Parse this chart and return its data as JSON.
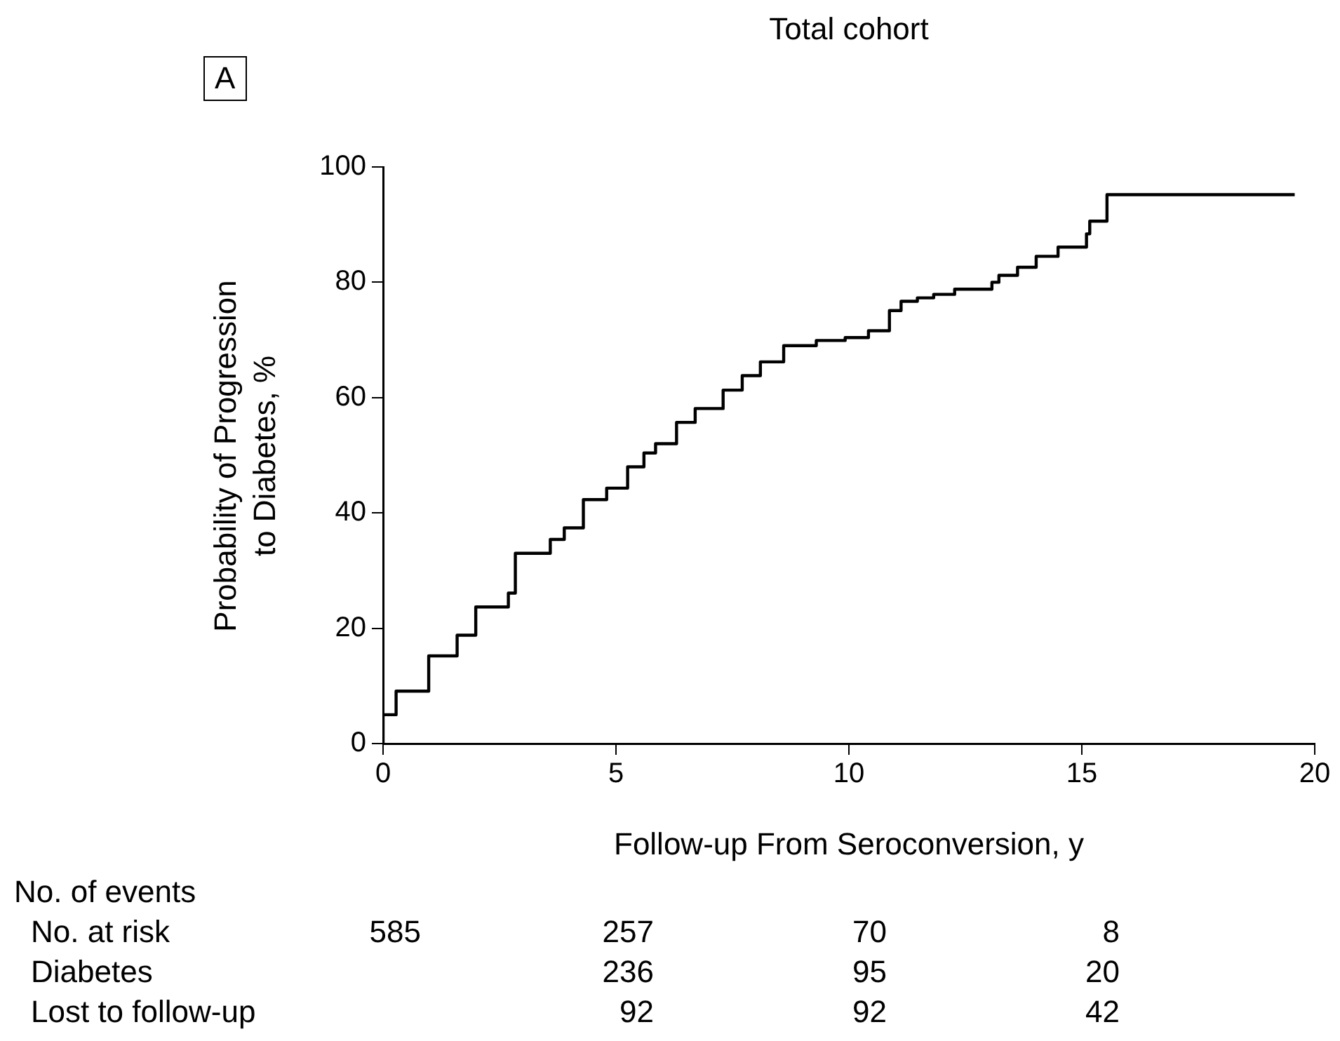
{
  "chart_data": {
    "type": "step",
    "title": "Total cohort",
    "xlabel": "Follow-up From Seroconversion, y",
    "ylabel": "Probability of Progression to Diabetes, %",
    "xlim": [
      0,
      20
    ],
    "xticks": [
      0,
      5,
      10,
      15,
      20
    ],
    "ylim": [
      0,
      100
    ],
    "yticks": [
      0,
      20,
      40,
      60,
      80,
      100
    ],
    "grid": false,
    "legend": false,
    "marker": "none",
    "line_style": "solid",
    "series": [
      {
        "color": "#000000",
        "x": [
          0,
          0,
          0.28,
          0.98,
          1.59,
          1.99,
          2.69,
          2.84,
          3.59,
          3.89,
          4.3,
          4.8,
          5.25,
          5.6,
          5.85,
          6.3,
          6.7,
          7.3,
          7.71,
          8.1,
          8.6,
          9.3,
          9.92,
          10.42,
          10.87,
          11.12,
          11.47,
          11.82,
          12.27,
          13.07,
          13.22,
          13.62,
          14.02,
          14.49,
          15.1,
          15.17,
          15.54,
          17.38,
          19.57
        ],
        "values": [
          0,
          2.2,
          5.0,
          9.1,
          15.2,
          18.8,
          23.7,
          26.1,
          33.0,
          35.4,
          37.4,
          42.3,
          44.3,
          48.0,
          50.4,
          52.0,
          55.7,
          58.1,
          61.3,
          63.8,
          66.2,
          69.0,
          69.9,
          70.4,
          71.6,
          75.1,
          76.7,
          77.3,
          77.9,
          78.8,
          80.0,
          81.2,
          82.6,
          84.5,
          86.1,
          88.4,
          90.6,
          95.2,
          95.2
        ]
      }
    ],
    "annotations": [
      "A",
      "No. of events",
      "No. at risk",
      "585",
      "257",
      "70",
      "8",
      "Diabetes",
      "236",
      "95",
      "20",
      "Lost to follow-up",
      "92",
      "92",
      "42"
    ]
  }
}
